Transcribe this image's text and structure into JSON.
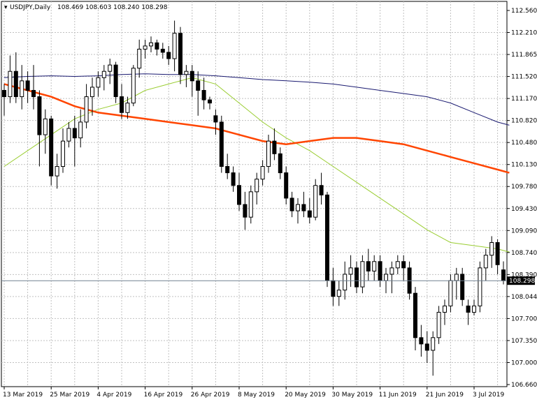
{
  "chart_data": {
    "type": "candlestick",
    "symbol": "USDJPY,Daily",
    "ohlc_label": "108.469 108.603 108.240 108.298",
    "current_price": "108.298",
    "y_ticks": [
      "112.560",
      "112.210",
      "111.865",
      "111.520",
      "111.170",
      "110.820",
      "110.480",
      "110.130",
      "109.780",
      "109.430",
      "109.090",
      "108.740",
      "108.390",
      "108.044",
      "107.700",
      "107.350",
      "107.000",
      "106.660"
    ],
    "ylim": [
      106.66,
      112.56
    ],
    "x_labels": [
      {
        "label": "13 Mar 2019",
        "bar": 0
      },
      {
        "label": "25 Mar 2019",
        "bar": 8
      },
      {
        "label": "4 Apr 2019",
        "bar": 16
      },
      {
        "label": "16 Apr 2019",
        "bar": 24
      },
      {
        "label": "26 Apr 2019",
        "bar": 32
      },
      {
        "label": "8 May 2019",
        "bar": 40
      },
      {
        "label": "20 May 2019",
        "bar": 48
      },
      {
        "label": "30 May 2019",
        "bar": 56
      },
      {
        "label": "11 Jun 2019",
        "bar": 64
      },
      {
        "label": "21 Jun 2019",
        "bar": 72
      },
      {
        "label": "3 Jul 2019",
        "bar": 80
      }
    ],
    "bars_total": 86,
    "candles": [
      [
        111.3,
        111.4,
        110.9,
        111.2
      ],
      [
        111.2,
        111.85,
        111.1,
        111.6
      ],
      [
        111.6,
        111.9,
        111.1,
        111.2
      ],
      [
        111.2,
        111.7,
        111.0,
        111.45
      ],
      [
        111.45,
        111.6,
        111.1,
        111.3
      ],
      [
        111.3,
        111.7,
        111.0,
        111.2
      ],
      [
        111.2,
        111.3,
        110.1,
        110.6
      ],
      [
        110.6,
        111.0,
        110.3,
        110.85
      ],
      [
        110.85,
        110.9,
        109.8,
        109.95
      ],
      [
        109.95,
        110.3,
        109.75,
        110.1
      ],
      [
        110.1,
        110.7,
        110.0,
        110.5
      ],
      [
        110.5,
        110.8,
        110.4,
        110.7
      ],
      [
        110.7,
        110.9,
        110.1,
        110.55
      ],
      [
        110.55,
        111.0,
        110.4,
        110.8
      ],
      [
        110.8,
        111.4,
        110.7,
        111.2
      ],
      [
        111.2,
        111.5,
        110.9,
        111.35
      ],
      [
        111.35,
        111.6,
        111.2,
        111.5
      ],
      [
        111.5,
        111.7,
        111.3,
        111.6
      ],
      [
        111.6,
        111.8,
        111.4,
        111.7
      ],
      [
        111.7,
        111.75,
        111.1,
        111.2
      ],
      [
        111.2,
        111.4,
        110.85,
        110.95
      ],
      [
        110.95,
        111.2,
        110.85,
        111.1
      ],
      [
        111.1,
        111.7,
        111.05,
        111.65
      ],
      [
        111.65,
        112.1,
        111.5,
        111.95
      ],
      [
        111.95,
        112.1,
        111.8,
        112.0
      ],
      [
        112.0,
        112.15,
        111.9,
        112.05
      ],
      [
        112.05,
        112.1,
        111.85,
        111.95
      ],
      [
        111.95,
        112.05,
        111.8,
        111.9
      ],
      [
        111.9,
        112.0,
        111.7,
        111.8
      ],
      [
        111.8,
        112.4,
        111.6,
        112.2
      ],
      [
        112.2,
        112.3,
        111.4,
        111.55
      ],
      [
        111.55,
        111.7,
        111.35,
        111.6
      ],
      [
        111.6,
        111.7,
        111.2,
        111.45
      ],
      [
        111.45,
        111.6,
        110.9,
        111.3
      ],
      [
        111.3,
        111.5,
        111.0,
        111.15
      ],
      [
        111.15,
        111.2,
        111.0,
        111.1
      ],
      [
        110.9,
        111.0,
        110.6,
        110.8
      ],
      [
        110.8,
        110.9,
        110.0,
        110.1
      ],
      [
        110.1,
        110.3,
        109.9,
        110.0
      ],
      [
        110.0,
        110.1,
        109.7,
        109.8
      ],
      [
        109.8,
        110.0,
        109.4,
        109.5
      ],
      [
        109.5,
        109.7,
        109.1,
        109.3
      ],
      [
        109.3,
        109.8,
        109.2,
        109.7
      ],
      [
        109.7,
        110.0,
        109.5,
        109.9
      ],
      [
        109.9,
        110.2,
        109.8,
        110.1
      ],
      [
        110.1,
        110.6,
        110.0,
        110.5
      ],
      [
        110.5,
        110.7,
        110.2,
        110.3
      ],
      [
        110.3,
        110.4,
        109.9,
        110.0
      ],
      [
        110.0,
        110.1,
        109.5,
        109.6
      ],
      [
        109.6,
        109.7,
        109.3,
        109.4
      ],
      [
        109.4,
        109.6,
        109.2,
        109.5
      ],
      [
        109.5,
        109.7,
        109.3,
        109.4
      ],
      [
        109.4,
        109.6,
        109.2,
        109.3
      ],
      [
        109.3,
        109.9,
        109.25,
        109.8
      ],
      [
        109.8,
        110.0,
        109.5,
        109.65
      ],
      [
        109.65,
        109.7,
        108.2,
        108.3
      ],
      [
        108.3,
        108.5,
        107.9,
        108.05
      ],
      [
        108.05,
        108.3,
        107.9,
        108.15
      ],
      [
        108.15,
        108.6,
        108.0,
        108.4
      ],
      [
        108.4,
        108.7,
        108.2,
        108.5
      ],
      [
        108.5,
        108.6,
        108.1,
        108.2
      ],
      [
        108.2,
        108.7,
        108.1,
        108.6
      ],
      [
        108.6,
        108.8,
        108.3,
        108.45
      ],
      [
        108.45,
        108.7,
        108.3,
        108.6
      ],
      [
        108.6,
        108.7,
        108.2,
        108.3
      ],
      [
        108.3,
        108.5,
        108.1,
        108.4
      ],
      [
        108.4,
        108.6,
        108.1,
        108.5
      ],
      [
        108.5,
        108.7,
        108.4,
        108.6
      ],
      [
        108.6,
        108.7,
        108.3,
        108.5
      ],
      [
        108.5,
        108.6,
        108.0,
        108.1
      ],
      [
        108.1,
        108.2,
        107.2,
        107.4
      ],
      [
        107.4,
        107.6,
        107.1,
        107.3
      ],
      [
        107.3,
        107.5,
        107.0,
        107.2
      ],
      [
        107.2,
        107.5,
        106.8,
        107.4
      ],
      [
        107.4,
        107.9,
        107.3,
        107.8
      ],
      [
        107.8,
        108.0,
        107.6,
        107.9
      ],
      [
        107.9,
        108.4,
        107.8,
        108.3
      ],
      [
        108.3,
        108.5,
        108.0,
        108.4
      ],
      [
        108.4,
        108.5,
        107.9,
        108.0
      ],
      [
        107.9,
        108.0,
        107.6,
        107.8
      ],
      [
        107.8,
        108.0,
        107.75,
        107.9
      ],
      [
        107.9,
        108.6,
        107.8,
        108.5
      ],
      [
        108.5,
        108.8,
        108.3,
        108.7
      ],
      [
        108.7,
        109.0,
        108.5,
        108.9
      ],
      [
        108.9,
        108.95,
        108.4,
        108.55
      ],
      [
        108.469,
        108.603,
        108.24,
        108.298
      ]
    ],
    "ma_fast": [
      [
        0,
        110.1
      ],
      [
        4,
        110.35
      ],
      [
        8,
        110.6
      ],
      [
        12,
        110.85
      ],
      [
        16,
        111.0
      ],
      [
        20,
        111.1
      ],
      [
        24,
        111.3
      ],
      [
        28,
        111.4
      ],
      [
        32,
        111.5
      ],
      [
        36,
        111.4
      ],
      [
        40,
        111.1
      ],
      [
        44,
        110.8
      ],
      [
        48,
        110.55
      ],
      [
        52,
        110.35
      ],
      [
        56,
        110.1
      ],
      [
        60,
        109.85
      ],
      [
        64,
        109.6
      ],
      [
        68,
        109.35
      ],
      [
        72,
        109.1
      ],
      [
        76,
        108.9
      ],
      [
        80,
        108.85
      ],
      [
        84,
        108.8
      ],
      [
        86,
        108.75
      ]
    ],
    "ma_mid": [
      [
        0,
        111.4
      ],
      [
        4,
        111.3
      ],
      [
        8,
        111.2
      ],
      [
        12,
        111.05
      ],
      [
        16,
        110.95
      ],
      [
        20,
        110.9
      ],
      [
        24,
        110.85
      ],
      [
        28,
        110.8
      ],
      [
        32,
        110.75
      ],
      [
        36,
        110.7
      ],
      [
        40,
        110.6
      ],
      [
        44,
        110.5
      ],
      [
        48,
        110.45
      ],
      [
        52,
        110.5
      ],
      [
        56,
        110.55
      ],
      [
        60,
        110.55
      ],
      [
        64,
        110.5
      ],
      [
        68,
        110.45
      ],
      [
        72,
        110.35
      ],
      [
        76,
        110.25
      ],
      [
        80,
        110.15
      ],
      [
        84,
        110.05
      ],
      [
        86,
        110.0
      ]
    ],
    "ma_slow": [
      [
        0,
        111.5
      ],
      [
        4,
        111.52
      ],
      [
        8,
        111.53
      ],
      [
        12,
        111.52
      ],
      [
        16,
        111.53
      ],
      [
        20,
        111.55
      ],
      [
        24,
        111.56
      ],
      [
        28,
        111.55
      ],
      [
        32,
        111.55
      ],
      [
        36,
        111.53
      ],
      [
        40,
        111.5
      ],
      [
        44,
        111.47
      ],
      [
        48,
        111.45
      ],
      [
        52,
        111.43
      ],
      [
        56,
        111.4
      ],
      [
        60,
        111.35
      ],
      [
        64,
        111.3
      ],
      [
        68,
        111.25
      ],
      [
        72,
        111.2
      ],
      [
        76,
        111.1
      ],
      [
        80,
        110.95
      ],
      [
        84,
        110.8
      ],
      [
        86,
        110.75
      ]
    ],
    "colors": {
      "bull": "#ffffff",
      "bear": "#000000",
      "outline": "#000000",
      "grid": "#c0c0c0",
      "ma_fast": "#9acd32",
      "ma_mid": "#ff4500",
      "ma_slow": "#191970",
      "price_line": "#708090"
    }
  }
}
